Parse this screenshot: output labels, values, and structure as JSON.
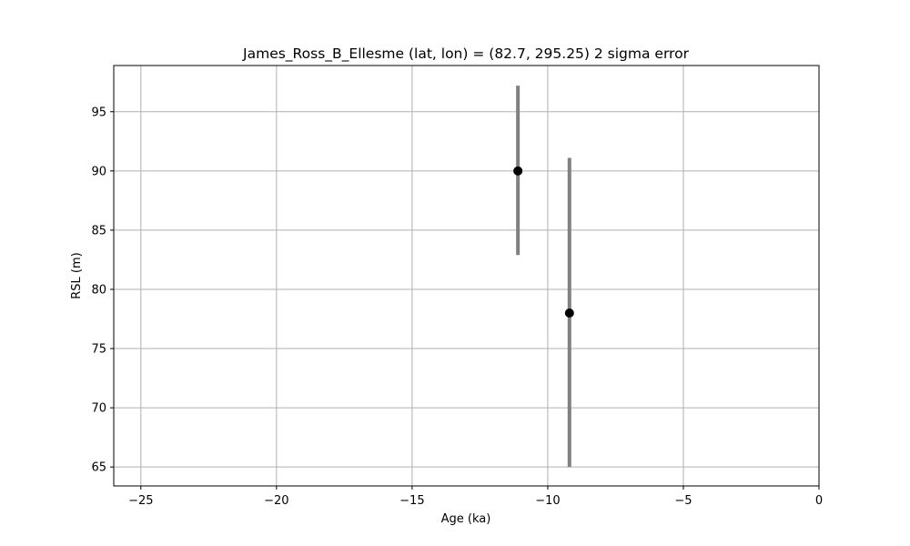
{
  "chart_data": {
    "type": "scatter",
    "title": "James_Ross_B_Ellesme (lat, lon) = (82.7, 295.25)  2 sigma error",
    "xlabel": "Age (ka)",
    "ylabel": "RSL (m)",
    "xlim": [
      -26.0,
      0.0
    ],
    "ylim": [
      63.4,
      98.9
    ],
    "x_ticks": [
      -25,
      -20,
      -15,
      -10,
      -5,
      0
    ],
    "x_tick_labels": [
      "−25",
      "−20",
      "−15",
      "−10",
      "−5",
      "0"
    ],
    "y_ticks": [
      65,
      70,
      75,
      80,
      85,
      90,
      95
    ],
    "y_tick_labels": [
      "65",
      "70",
      "75",
      "80",
      "85",
      "90",
      "95"
    ],
    "grid": true,
    "legend": "none",
    "series": [
      {
        "points": [
          {
            "x": -11.1,
            "y": 90.0,
            "err_low": 82.9,
            "err_high": 97.2
          },
          {
            "x": -9.2,
            "y": 78.0,
            "err_low": 65.0,
            "err_high": 91.1
          }
        ],
        "marker_color": "#000000",
        "errorbar_color": "#808080"
      }
    ]
  }
}
